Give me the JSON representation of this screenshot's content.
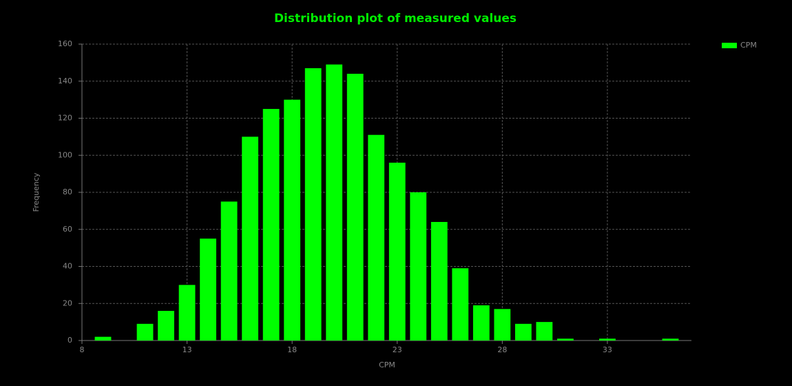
{
  "chart_data": {
    "type": "histogram",
    "title": "Distribution plot of measured values",
    "xlabel": "CPM",
    "ylabel": "Frequency",
    "bins": [
      8.5,
      9.5,
      10.5,
      11.5,
      12.5,
      13.5,
      14.5,
      15.5,
      16.5,
      17.5,
      18.5,
      19.5,
      20.5,
      21.5,
      22.5,
      23.5,
      24.5,
      25.5,
      26.5,
      27.5,
      28.5,
      29.5,
      30.5,
      31.5,
      32.5,
      33.5,
      34.5,
      35.5,
      36.5
    ],
    "series": [
      {
        "name": "CPM",
        "color": "#00ff00",
        "values": [
          2,
          0,
          9,
          16,
          30,
          55,
          75,
          110,
          125,
          130,
          147,
          149,
          144,
          111,
          96,
          80,
          64,
          39,
          19,
          17,
          9,
          10,
          1,
          0,
          1,
          0,
          0,
          1
        ]
      }
    ],
    "xlim": [
      8,
      37
    ],
    "xticks": [
      8,
      13,
      18,
      23,
      28,
      33
    ],
    "ylim": [
      0,
      160
    ],
    "yticks": [
      0,
      20,
      40,
      60,
      80,
      100,
      120,
      140,
      160
    ],
    "grid": true,
    "legend": "top-right"
  }
}
